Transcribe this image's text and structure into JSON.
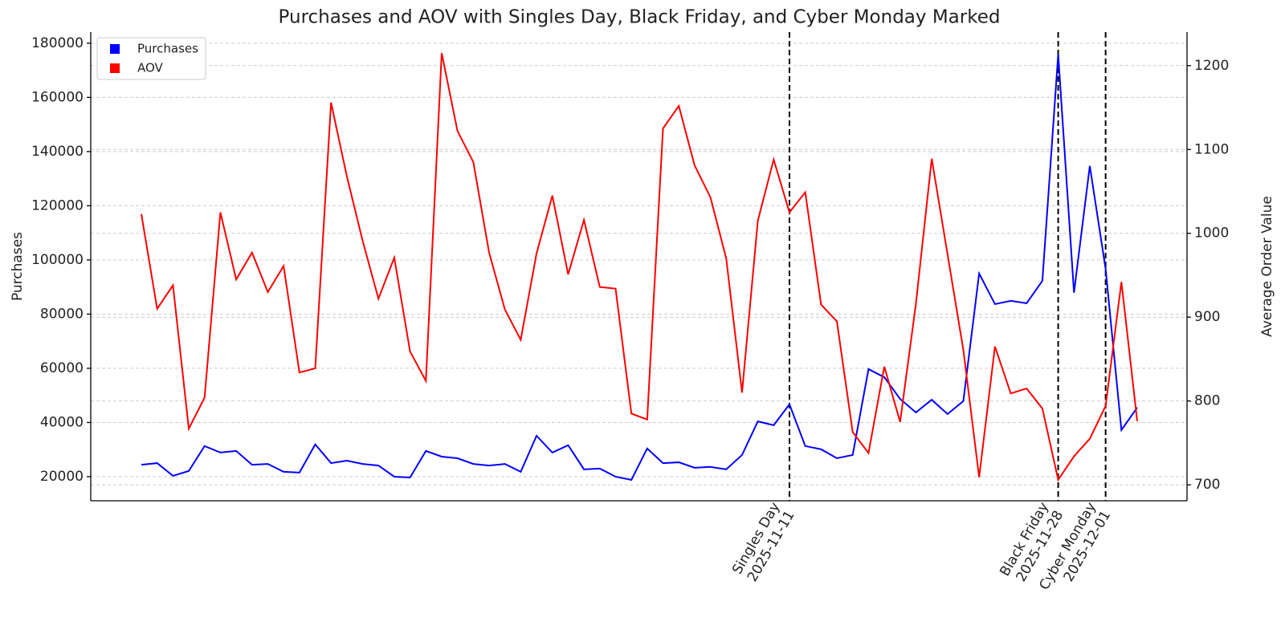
{
  "chart_data": {
    "type": "line",
    "title": "Purchases and AOV with Singles Day, Black Friday, and Cyber Monday Marked",
    "ylabel": "Purchases",
    "y2label": "Average Order Value",
    "categories": [
      null,
      null,
      null,
      null,
      null,
      null,
      null,
      null,
      null,
      null,
      null,
      null,
      null,
      null,
      null,
      null,
      null,
      null,
      null,
      null,
      null,
      null,
      null,
      null,
      null,
      null,
      null,
      null,
      null,
      null,
      null,
      null,
      null,
      null,
      null,
      null,
      null,
      null,
      null,
      null,
      null,
      "Singles Day\n2025-11-11",
      null,
      null,
      null,
      null,
      null,
      null,
      null,
      null,
      null,
      null,
      null,
      null,
      null,
      null,
      null,
      null,
      "Black Friday\n2025-11-28",
      null,
      null,
      "Cyber Monday\n2025-12-01",
      null,
      null
    ],
    "series": [
      {
        "name": "Purchases",
        "color": "#0000ff",
        "axis": "y",
        "values": [
          24400,
          25000,
          20300,
          22100,
          31300,
          28900,
          29500,
          24400,
          24700,
          21800,
          21500,
          31900,
          25000,
          25900,
          24700,
          24100,
          20000,
          19700,
          29500,
          27400,
          26800,
          24700,
          24100,
          24700,
          21800,
          35100,
          28900,
          31600,
          22700,
          23000,
          20000,
          18800,
          30400,
          25000,
          25300,
          23300,
          23600,
          22700,
          28000,
          40400,
          39000,
          46700,
          31300,
          30100,
          26800,
          28000,
          59700,
          56700,
          48700,
          43700,
          48400,
          43100,
          47900,
          95000,
          83700,
          84900,
          84000,
          92300,
          175900,
          87900,
          134700,
          96700,
          37200,
          45500
        ]
      },
      {
        "name": "AOV",
        "color": "#ff0000",
        "axis": "y2",
        "values": [
          1023,
          910,
          938,
          767,
          804,
          1025,
          945,
          977,
          930,
          961,
          834,
          839,
          1156,
          1068,
          991,
          922,
          971,
          859,
          824,
          1215,
          1122,
          1085,
          977,
          909,
          873,
          976,
          1045,
          951,
          1016,
          936,
          934,
          785,
          778,
          1125,
          1152,
          1081,
          1043,
          970,
          810,
          1015,
          1088,
          1025,
          1049,
          915,
          895,
          763,
          738,
          841,
          775,
          916,
          1089,
          975,
          861,
          709,
          865,
          809,
          815,
          791,
          706,
          734,
          755,
          794,
          942,
          776
        ]
      }
    ],
    "ylim": [
      11100,
      184100
    ],
    "yticks": [
      20000,
      40000,
      60000,
      80000,
      100000,
      120000,
      140000,
      160000,
      180000
    ],
    "y2lim": [
      681,
      1240
    ],
    "y2ticks": [
      700,
      800,
      900,
      1000,
      1100,
      1200
    ],
    "grid": true,
    "legend": "upper left"
  }
}
